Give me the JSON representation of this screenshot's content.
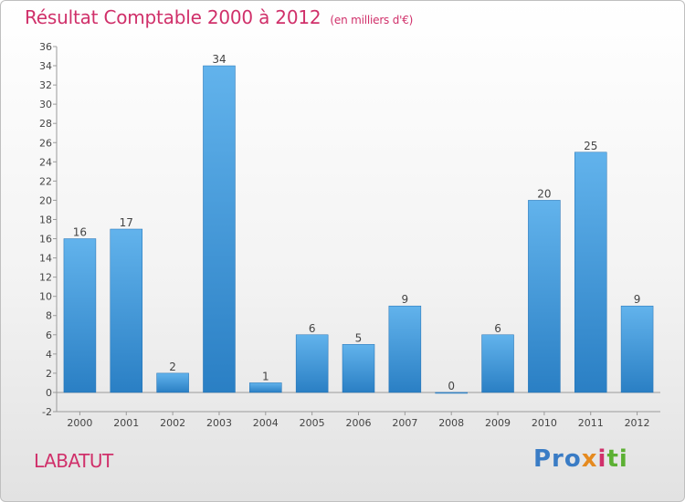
{
  "title": "Résultat Comptable 2000 à 2012",
  "subtitle": "(en milliers d'€)",
  "commune": "LABATUT",
  "brand": {
    "parts": [
      "Pro",
      "x",
      "i",
      "ti"
    ],
    "colors": [
      "#3a7cc5",
      "#e58a1f",
      "#d0306a",
      "#5cb033"
    ]
  },
  "colors": {
    "bar_top": "#62b3ec",
    "bar_bottom": "#2a7fc4",
    "title": "#d0306a",
    "grid": "#c8c8c8"
  },
  "chart_data": {
    "type": "bar",
    "title": "Résultat Comptable 2000 à 2012",
    "subtitle": "(en milliers d'€)",
    "categories": [
      "2000",
      "2001",
      "2002",
      "2003",
      "2004",
      "2005",
      "2006",
      "2007",
      "2008",
      "2009",
      "2010",
      "2011",
      "2012"
    ],
    "values": [
      16,
      17,
      2,
      34,
      1,
      6,
      5,
      9,
      0,
      6,
      20,
      25,
      9
    ],
    "data_labels": [
      "16",
      "17",
      "2",
      "34",
      "1",
      "6",
      "5",
      "9",
      "0",
      "6",
      "20",
      "25",
      "9"
    ],
    "yticks": [
      -2,
      0,
      2,
      4,
      6,
      8,
      10,
      12,
      14,
      16,
      18,
      20,
      22,
      24,
      26,
      28,
      30,
      32,
      34,
      36
    ],
    "ylim": [
      -2,
      36
    ],
    "xlabel": "",
    "ylabel": "",
    "grid": false,
    "legend": "none"
  }
}
